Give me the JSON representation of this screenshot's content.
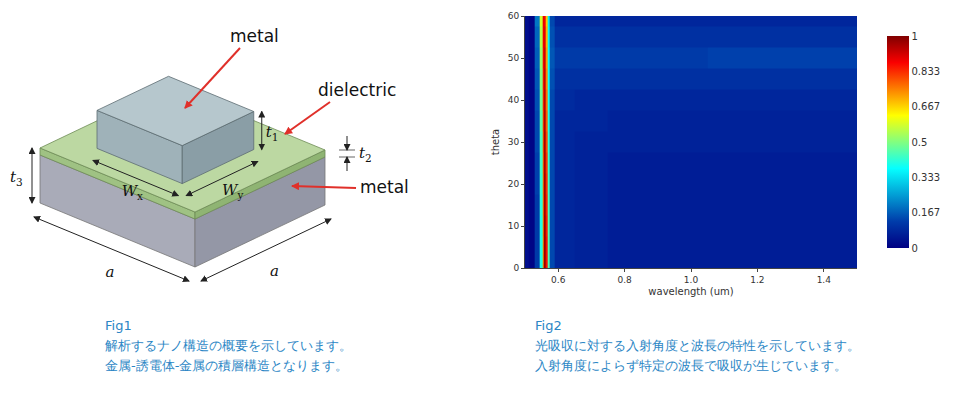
{
  "chart_data": {
    "type": "heatmap",
    "x_label": "wavelength (um)",
    "y_label": "theta",
    "x": [
      0.5,
      0.52,
      0.54,
      0.55,
      0.555,
      0.56,
      0.565,
      0.57,
      0.58,
      0.6,
      0.7,
      0.8,
      0.9,
      1.0,
      1.1,
      1.2,
      1.3,
      1.4,
      1.5
    ],
    "y": [
      0,
      5,
      10,
      15,
      20,
      25,
      30,
      35,
      40,
      45,
      50,
      55,
      60
    ],
    "z": [
      [
        0.03,
        0.01,
        0.12,
        0.4,
        0.72,
        0.98,
        0.86,
        0.45,
        0.14,
        0.08,
        0.07,
        0.06,
        0.06,
        0.06,
        0.06,
        0.06,
        0.06,
        0.06,
        0.06
      ],
      [
        0.03,
        0.01,
        0.12,
        0.4,
        0.72,
        0.98,
        0.86,
        0.45,
        0.14,
        0.08,
        0.07,
        0.06,
        0.06,
        0.06,
        0.06,
        0.06,
        0.06,
        0.06,
        0.06
      ],
      [
        0.03,
        0.01,
        0.12,
        0.4,
        0.73,
        0.98,
        0.85,
        0.45,
        0.14,
        0.08,
        0.07,
        0.06,
        0.06,
        0.06,
        0.06,
        0.06,
        0.06,
        0.06,
        0.06
      ],
      [
        0.03,
        0.01,
        0.12,
        0.41,
        0.74,
        0.97,
        0.84,
        0.44,
        0.14,
        0.08,
        0.07,
        0.06,
        0.06,
        0.06,
        0.06,
        0.06,
        0.06,
        0.06,
        0.06
      ],
      [
        0.03,
        0.01,
        0.13,
        0.42,
        0.75,
        0.97,
        0.83,
        0.43,
        0.14,
        0.08,
        0.07,
        0.06,
        0.06,
        0.06,
        0.06,
        0.06,
        0.06,
        0.06,
        0.06
      ],
      [
        0.03,
        0.01,
        0.13,
        0.43,
        0.76,
        0.96,
        0.82,
        0.42,
        0.14,
        0.08,
        0.07,
        0.06,
        0.06,
        0.06,
        0.06,
        0.06,
        0.06,
        0.06,
        0.06
      ],
      [
        0.03,
        0.01,
        0.14,
        0.44,
        0.78,
        0.96,
        0.8,
        0.41,
        0.14,
        0.08,
        0.07,
        0.07,
        0.07,
        0.07,
        0.07,
        0.07,
        0.07,
        0.07,
        0.07
      ],
      [
        0.03,
        0.01,
        0.14,
        0.46,
        0.8,
        0.95,
        0.78,
        0.4,
        0.14,
        0.08,
        0.08,
        0.07,
        0.07,
        0.07,
        0.07,
        0.07,
        0.07,
        0.07,
        0.07
      ],
      [
        0.03,
        0.01,
        0.15,
        0.48,
        0.82,
        0.94,
        0.76,
        0.39,
        0.14,
        0.09,
        0.08,
        0.08,
        0.08,
        0.08,
        0.08,
        0.08,
        0.08,
        0.08,
        0.08
      ],
      [
        0.03,
        0.01,
        0.16,
        0.5,
        0.84,
        0.93,
        0.74,
        0.38,
        0.15,
        0.1,
        0.1,
        0.1,
        0.1,
        0.1,
        0.1,
        0.1,
        0.1,
        0.1,
        0.1
      ],
      [
        0.03,
        0.01,
        0.17,
        0.52,
        0.86,
        0.92,
        0.72,
        0.37,
        0.16,
        0.12,
        0.12,
        0.12,
        0.12,
        0.12,
        0.13,
        0.13,
        0.13,
        0.13,
        0.13
      ],
      [
        0.03,
        0.01,
        0.18,
        0.55,
        0.88,
        0.9,
        0.7,
        0.36,
        0.15,
        0.1,
        0.1,
        0.1,
        0.1,
        0.1,
        0.1,
        0.1,
        0.1,
        0.1,
        0.1
      ],
      [
        0.03,
        0.01,
        0.2,
        0.58,
        0.9,
        0.88,
        0.68,
        0.35,
        0.14,
        0.08,
        0.08,
        0.08,
        0.08,
        0.08,
        0.08,
        0.08,
        0.08,
        0.08,
        0.08
      ]
    ],
    "xlim": [
      0.5,
      1.5
    ],
    "xticks": [
      0.6,
      0.8,
      {
        "value": 1,
        "label": "1.0"
      },
      1.2,
      1.4
    ],
    "ylim": [
      0,
      60
    ],
    "yticks": [
      0,
      10,
      20,
      30,
      40,
      50,
      60
    ],
    "zlim": [
      0,
      1
    ],
    "zticks": [
      0,
      0.167,
      0.333,
      0.5,
      0.667,
      0.833,
      1
    ]
  },
  "diagram": {
    "labels": {
      "top_metal": "metal",
      "dielectric": "dielectric",
      "bottom_metal": "metal"
    },
    "dimensions": {
      "t1": {
        "base": "t",
        "sub": "1"
      },
      "t2": {
        "base": "t",
        "sub": "2"
      },
      "t3": {
        "base": "t",
        "sub": "3"
      },
      "Wx": {
        "base": "W",
        "sub": "x"
      },
      "Wy": {
        "base": "W",
        "sub": "y"
      },
      "a_left": {
        "base": "a"
      },
      "a_right": {
        "base": "a"
      }
    }
  },
  "captions": [
    {
      "label": "Fig1",
      "lines": [
        "解析するナノ構造の概要を示しています。",
        "金属-誘電体-金属の積層構造となります。"
      ]
    },
    {
      "label": "Fig2",
      "lines": [
        "光吸収に対する入射角度と波長の特性を示しています。",
        "入射角度によらず特定の波長で吸収が生じています。"
      ]
    }
  ]
}
